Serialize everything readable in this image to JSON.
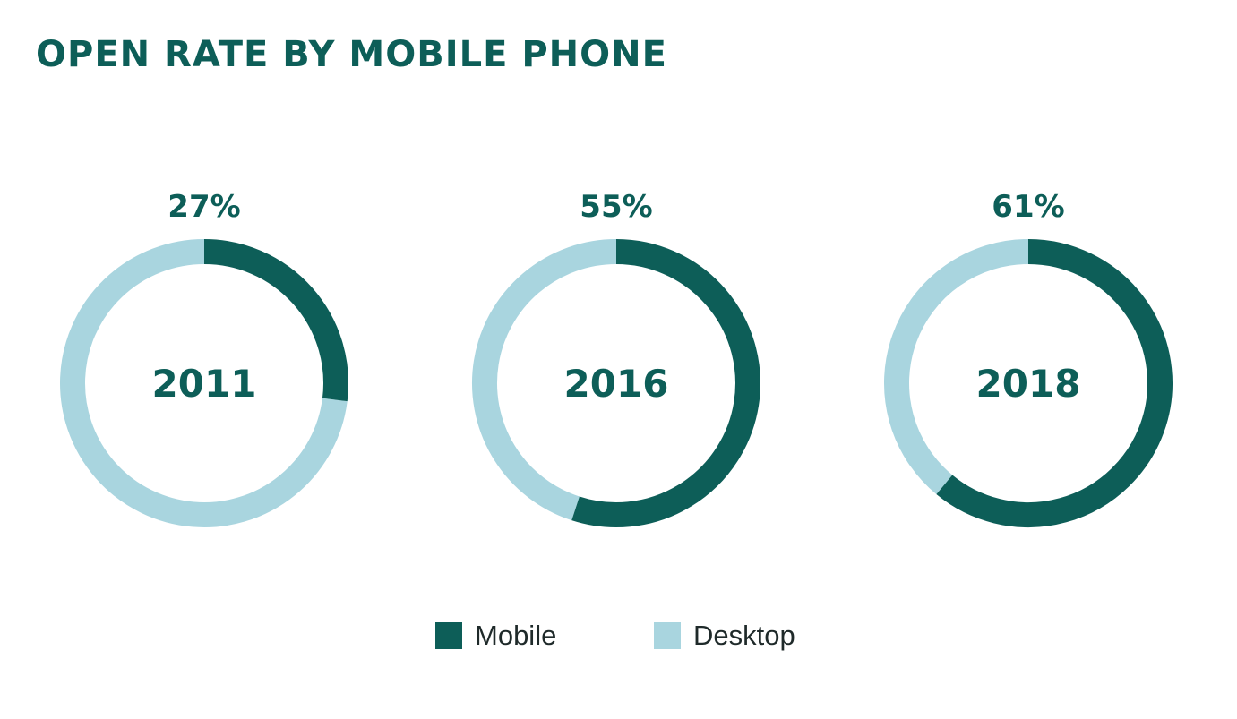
{
  "title": "OPEN RATE BY MOBILE PHONE",
  "colors": {
    "mobile": "#0d5e58",
    "desktop": "#a9d5df",
    "text": "#0d5e58"
  },
  "chart_data": {
    "type": "pie",
    "variant": "donut",
    "title": "OPEN RATE BY MOBILE PHONE",
    "unit": "%",
    "series_names": [
      "Mobile",
      "Desktop"
    ],
    "charts": [
      {
        "year": "2011",
        "mobile": 27,
        "desktop": 73,
        "label": "27%"
      },
      {
        "year": "2016",
        "mobile": 55,
        "desktop": 45,
        "label": "55%"
      },
      {
        "year": "2018",
        "mobile": 61,
        "desktop": 39,
        "label": "61%"
      }
    ],
    "legend": {
      "placement": "bottom",
      "entries": [
        {
          "name": "Mobile",
          "color": "#0d5e58"
        },
        {
          "name": "Desktop",
          "color": "#a9d5df"
        }
      ]
    }
  }
}
